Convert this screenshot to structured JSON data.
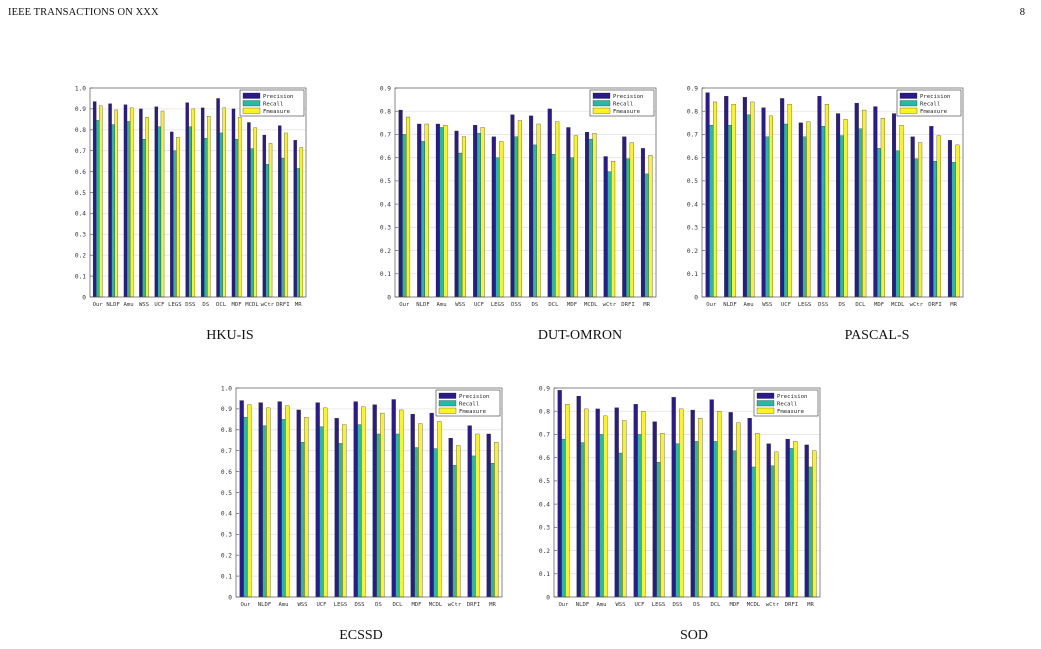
{
  "header": {
    "journal": "IEEE TRANSACTIONS ON XXX",
    "page_number": "8"
  },
  "legend_labels": [
    "Precision",
    "Recall",
    "Fmeasure"
  ],
  "colors": {
    "precision": "#2a1a8c",
    "recall": "#26b9a6",
    "fmeasure": "#fbf322"
  },
  "categories": [
    "Our",
    "NLDF",
    "Amu",
    "WSS",
    "UCF",
    "LEGS",
    "DSS",
    "DS",
    "DCL",
    "MDF",
    "MCDL",
    "wCtr",
    "DRFI",
    "MR"
  ],
  "chart_data": [
    {
      "type": "bar",
      "title": "HKU-IS",
      "ylim": [
        0,
        1.0
      ],
      "yticks": [
        "0",
        "0.1",
        "0.2",
        "0.3",
        "0.4",
        "0.5",
        "0.6",
        "0.7",
        "0.8",
        "0.9",
        "1.0"
      ],
      "grid": true,
      "legend": "top-right",
      "series": [
        {
          "name": "Precision",
          "values": [
            0.935,
            0.925,
            0.92,
            0.9,
            0.91,
            0.79,
            0.93,
            0.905,
            0.95,
            0.9,
            0.835,
            0.775,
            0.82,
            0.75
          ]
        },
        {
          "name": "Recall",
          "values": [
            0.845,
            0.825,
            0.84,
            0.755,
            0.815,
            0.7,
            0.815,
            0.76,
            0.785,
            0.755,
            0.71,
            0.635,
            0.665,
            0.615
          ]
        },
        {
          "name": "Fmeasure",
          "values": [
            0.915,
            0.895,
            0.905,
            0.86,
            0.89,
            0.765,
            0.9,
            0.865,
            0.905,
            0.86,
            0.81,
            0.735,
            0.785,
            0.715
          ]
        }
      ]
    },
    {
      "type": "bar",
      "title": "DUT-OMRON",
      "ylim": [
        0,
        0.9
      ],
      "yticks": [
        "0",
        "0.1",
        "0.2",
        "0.3",
        "0.4",
        "0.5",
        "0.6",
        "0.7",
        "0.8",
        "0.9"
      ],
      "grid": true,
      "legend": "top-right",
      "series": [
        {
          "name": "Precision",
          "values": [
            0.805,
            0.745,
            0.745,
            0.715,
            0.74,
            0.69,
            0.785,
            0.78,
            0.81,
            0.73,
            0.71,
            0.605,
            0.69,
            0.64
          ]
        },
        {
          "name": "Recall",
          "values": [
            0.7,
            0.67,
            0.73,
            0.62,
            0.705,
            0.6,
            0.69,
            0.655,
            0.615,
            0.6,
            0.68,
            0.54,
            0.595,
            0.53
          ]
        },
        {
          "name": "Fmeasure",
          "values": [
            0.775,
            0.745,
            0.74,
            0.69,
            0.73,
            0.67,
            0.76,
            0.745,
            0.755,
            0.695,
            0.705,
            0.585,
            0.665,
            0.61
          ]
        }
      ]
    },
    {
      "type": "bar",
      "title": "PASCAL-S",
      "ylim": [
        0,
        0.9
      ],
      "yticks": [
        "0",
        "0.1",
        "0.2",
        "0.3",
        "0.4",
        "0.5",
        "0.6",
        "0.7",
        "0.8",
        "0.9"
      ],
      "grid": true,
      "legend": "top-right",
      "series": [
        {
          "name": "Precision",
          "values": [
            0.88,
            0.865,
            0.86,
            0.815,
            0.855,
            0.75,
            0.865,
            0.79,
            0.835,
            0.82,
            0.79,
            0.69,
            0.735,
            0.675
          ]
        },
        {
          "name": "Recall",
          "values": [
            0.74,
            0.74,
            0.785,
            0.69,
            0.745,
            0.69,
            0.735,
            0.695,
            0.725,
            0.64,
            0.63,
            0.595,
            0.585,
            0.58
          ]
        },
        {
          "name": "Fmeasure",
          "values": [
            0.84,
            0.83,
            0.84,
            0.78,
            0.83,
            0.755,
            0.83,
            0.765,
            0.805,
            0.77,
            0.74,
            0.665,
            0.695,
            0.655
          ]
        }
      ]
    },
    {
      "type": "bar",
      "title": "ECSSD",
      "ylim": [
        0,
        1.0
      ],
      "yticks": [
        "0",
        "0.1",
        "0.2",
        "0.3",
        "0.4",
        "0.5",
        "0.6",
        "0.7",
        "0.8",
        "0.9",
        "1.0"
      ],
      "grid": true,
      "legend": "top-right",
      "series": [
        {
          "name": "Precision",
          "values": [
            0.94,
            0.93,
            0.935,
            0.895,
            0.93,
            0.855,
            0.935,
            0.92,
            0.945,
            0.875,
            0.88,
            0.76,
            0.82,
            0.78
          ]
        },
        {
          "name": "Recall",
          "values": [
            0.86,
            0.82,
            0.85,
            0.74,
            0.815,
            0.735,
            0.825,
            0.78,
            0.78,
            0.715,
            0.71,
            0.63,
            0.675,
            0.64
          ]
        },
        {
          "name": "Fmeasure",
          "values": [
            0.92,
            0.905,
            0.915,
            0.86,
            0.905,
            0.825,
            0.91,
            0.88,
            0.895,
            0.83,
            0.84,
            0.725,
            0.78,
            0.74
          ]
        }
      ]
    },
    {
      "type": "bar",
      "title": "SOD",
      "ylim": [
        0,
        0.9
      ],
      "yticks": [
        "0",
        "0.1",
        "0.2",
        "0.3",
        "0.4",
        "0.5",
        "0.6",
        "0.7",
        "0.8",
        "0.9"
      ],
      "grid": true,
      "legend": "top-right",
      "series": [
        {
          "name": "Precision",
          "values": [
            0.89,
            0.865,
            0.81,
            0.815,
            0.83,
            0.755,
            0.86,
            0.805,
            0.85,
            0.795,
            0.77,
            0.66,
            0.68,
            0.655
          ]
        },
        {
          "name": "Recall",
          "values": [
            0.68,
            0.665,
            0.7,
            0.62,
            0.7,
            0.58,
            0.66,
            0.67,
            0.67,
            0.63,
            0.56,
            0.565,
            0.64,
            0.56
          ]
        },
        {
          "name": "Fmeasure",
          "values": [
            0.83,
            0.81,
            0.78,
            0.76,
            0.8,
            0.705,
            0.81,
            0.77,
            0.8,
            0.75,
            0.705,
            0.625,
            0.67,
            0.63
          ]
        }
      ]
    }
  ]
}
